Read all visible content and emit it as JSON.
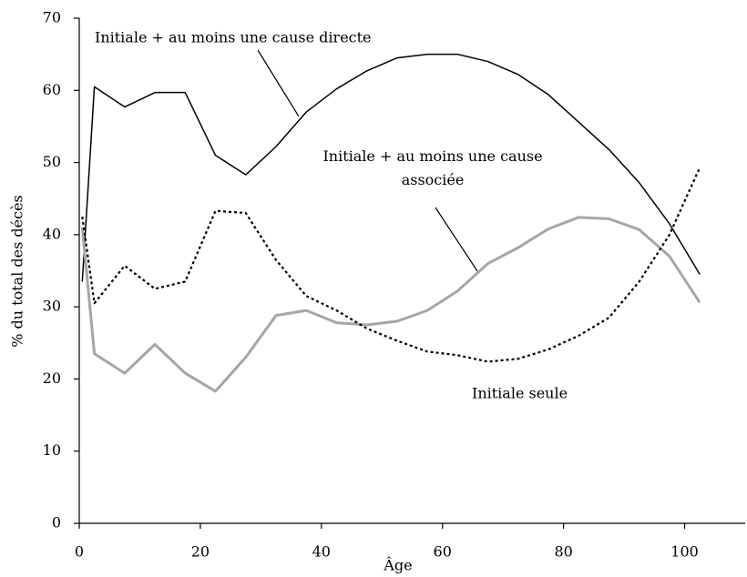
{
  "chart_data": {
    "type": "line",
    "xlabel": "Âge",
    "ylabel": "% du total des décès",
    "x": [
      0.5,
      2.5,
      7.5,
      12.5,
      17.5,
      22.5,
      27.5,
      32.5,
      37.5,
      42.5,
      47.5,
      52.5,
      57.5,
      62.5,
      67.5,
      72.5,
      77.5,
      82.5,
      87.5,
      92.5,
      97.5,
      102.5
    ],
    "series": [
      {
        "name": "Initiale + au moins une cause directe",
        "color": "#000000",
        "dashed": false,
        "values": [
          33.5,
          60.5,
          57.7,
          59.7,
          59.7,
          51,
          48.3,
          52.2,
          57,
          60.2,
          62.7,
          64.5,
          65,
          65,
          64,
          62.2,
          59.4,
          55.6,
          51.8,
          47.2,
          41.5,
          34.5
        ]
      },
      {
        "name": "Initiale + au moins une cause associée",
        "color": "#a6a6a6",
        "dashed": false,
        "values": [
          41,
          23.5,
          20.8,
          24.8,
          20.8,
          18.3,
          23,
          28.8,
          29.5,
          27.8,
          27.5,
          28,
          29.5,
          32.2,
          36,
          38.2,
          40.8,
          42.4,
          42.2,
          40.7,
          37,
          30.6
        ]
      },
      {
        "name": "Initiale seule",
        "color": "#000000",
        "dashed": true,
        "values": [
          42.5,
          30.5,
          35.7,
          32.5,
          33.5,
          43.3,
          43,
          36.5,
          31.5,
          29.5,
          27,
          25.3,
          23.8,
          23.3,
          22.4,
          22.8,
          24.1,
          26,
          28.5,
          33.5,
          40,
          49.3
        ]
      }
    ],
    "xlim": [
      0,
      110
    ],
    "xticks": [
      0,
      20,
      40,
      60,
      80,
      100
    ],
    "ylim": [
      0,
      70
    ],
    "yticks": [
      0,
      10,
      20,
      30,
      40,
      50,
      60,
      70
    ],
    "grid": false
  }
}
